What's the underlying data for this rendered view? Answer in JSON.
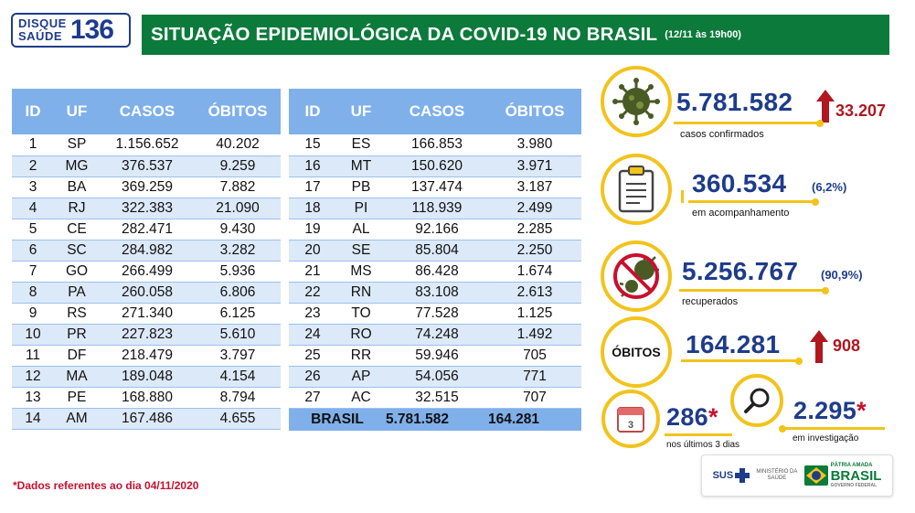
{
  "header": {
    "logo_top": "DISQUE",
    "logo_bottom": "SAÚDE",
    "logo_number": "136",
    "title": "SITUAÇÃO EPIDEMIOLÓGICA DA COVID-19 NO BRASIL",
    "date": "(12/11 às 19h00)"
  },
  "table_headers": [
    "ID",
    "UF",
    "CASOS",
    "ÓBITOS"
  ],
  "table_left": [
    [
      "1",
      "SP",
      "1.156.652",
      "40.202"
    ],
    [
      "2",
      "MG",
      "376.537",
      "9.259"
    ],
    [
      "3",
      "BA",
      "369.259",
      "7.882"
    ],
    [
      "4",
      "RJ",
      "322.383",
      "21.090"
    ],
    [
      "5",
      "CE",
      "282.471",
      "9.430"
    ],
    [
      "6",
      "SC",
      "284.982",
      "3.282"
    ],
    [
      "7",
      "GO",
      "266.499",
      "5.936"
    ],
    [
      "8",
      "PA",
      "260.058",
      "6.806"
    ],
    [
      "9",
      "RS",
      "271.340",
      "6.125"
    ],
    [
      "10",
      "PR",
      "227.823",
      "5.610"
    ],
    [
      "11",
      "DF",
      "218.479",
      "3.797"
    ],
    [
      "12",
      "MA",
      "189.048",
      "4.154"
    ],
    [
      "13",
      "PE",
      "168.880",
      "8.794"
    ],
    [
      "14",
      "AM",
      "167.486",
      "4.655"
    ]
  ],
  "table_right": [
    [
      "15",
      "ES",
      "166.853",
      "3.980"
    ],
    [
      "16",
      "MT",
      "150.620",
      "3.971"
    ],
    [
      "17",
      "PB",
      "137.474",
      "3.187"
    ],
    [
      "18",
      "PI",
      "118.939",
      "2.499"
    ],
    [
      "19",
      "AL",
      "92.166",
      "2.285"
    ],
    [
      "20",
      "SE",
      "85.804",
      "2.250"
    ],
    [
      "21",
      "MS",
      "86.428",
      "1.674"
    ],
    [
      "22",
      "RN",
      "83.108",
      "2.613"
    ],
    [
      "23",
      "TO",
      "77.528",
      "1.125"
    ],
    [
      "24",
      "RO",
      "74.248",
      "1.492"
    ],
    [
      "25",
      "RR",
      "59.946",
      "705"
    ],
    [
      "26",
      "AP",
      "54.056",
      "771"
    ],
    [
      "27",
      "AC",
      "32.515",
      "707"
    ]
  ],
  "total": {
    "label": "BRASIL",
    "casos": "5.781.582",
    "obitos": "164.281"
  },
  "footnote": "*Dados referentes ao dia 04/11/2020",
  "stats": {
    "confirmed": {
      "value": "5.781.582",
      "delta": "33.207",
      "caption": "casos confirmados"
    },
    "monitoring": {
      "value": "360.534",
      "pct": "(6,2%)",
      "caption": "em acompanhamento"
    },
    "recovered": {
      "value": "5.256.767",
      "pct": "(90,9%)",
      "caption": "recuperados"
    },
    "deaths": {
      "label": "ÓBITOS",
      "value": "164.281",
      "delta": "908"
    },
    "last3days": {
      "value": "286",
      "star": "*",
      "caption": "nos últimos 3 dias",
      "icon_number": "3"
    },
    "investigation": {
      "value": "2.295",
      "star": "*",
      "caption": "em investigação"
    }
  },
  "brand": {
    "sus": "SUS",
    "ministry_line1": "MINISTÉRIO DA",
    "ministry_line2": "SAÚDE",
    "patria_small": "PÁTRIA AMADA",
    "patria_big": "BRASIL",
    "gov_small": "GOVERNO FEDERAL"
  },
  "colors": {
    "header_green": "#0b7a3b",
    "table_header_blue": "#7fb0ea",
    "row_alt_blue": "#dce9f8",
    "number_blue": "#1e3c8a",
    "accent_yellow": "#f2c31b",
    "delta_red": "#b0171f"
  }
}
